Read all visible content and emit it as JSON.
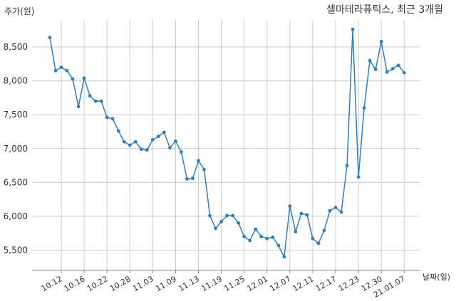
{
  "chart_data": {
    "type": "line",
    "title": "셀마테라퓨틱스, 최근 3개월",
    "ylabel": "주가(원)",
    "xlabel": "날짜(일)",
    "ylim": [
      5200,
      8900
    ],
    "y_ticks": [
      5500,
      6000,
      6500,
      7000,
      7500,
      8000,
      8500
    ],
    "y_tick_labels": [
      "5,500",
      "6,000",
      "6,500",
      "7,000",
      "7,500",
      "8,000",
      "8,500"
    ],
    "x_tick_labels": [
      "10.12",
      "10.16",
      "10.22",
      "10.28",
      "11.03",
      "11.09",
      "11.13",
      "11.19",
      "11.25",
      "12.01",
      "12.07",
      "12.11",
      "12.17",
      "12.23",
      "12.30",
      "21.01.07"
    ],
    "x_tick_positions": [
      2,
      6,
      10,
      14,
      18,
      22,
      26,
      30,
      34,
      38,
      42,
      46,
      50,
      54,
      58,
      62
    ],
    "grid": true,
    "series": [
      {
        "values": [
          8640,
          8150,
          8200,
          8150,
          8030,
          7620,
          8040,
          7780,
          7700,
          7700,
          7460,
          7440,
          7260,
          7100,
          7050,
          7100,
          6990,
          6980,
          7130,
          7180,
          7240,
          7010,
          7110,
          6950,
          6550,
          6560,
          6820,
          6690,
          6010,
          5820,
          5920,
          6010,
          6010,
          5900,
          5700,
          5640,
          5810,
          5700,
          5670,
          5690,
          5570,
          5400,
          6150,
          5770,
          6040,
          6020,
          5670,
          5600,
          5790,
          6080,
          6130,
          6060,
          6750,
          8760,
          6580,
          7600,
          8300,
          8170,
          8580,
          8130,
          8180,
          8230,
          8120
        ]
      }
    ],
    "colors": {
      "line": "#2f7ebc",
      "marker": "#2f7ebc",
      "grid": "#cccccc",
      "axis": "#888888"
    }
  }
}
